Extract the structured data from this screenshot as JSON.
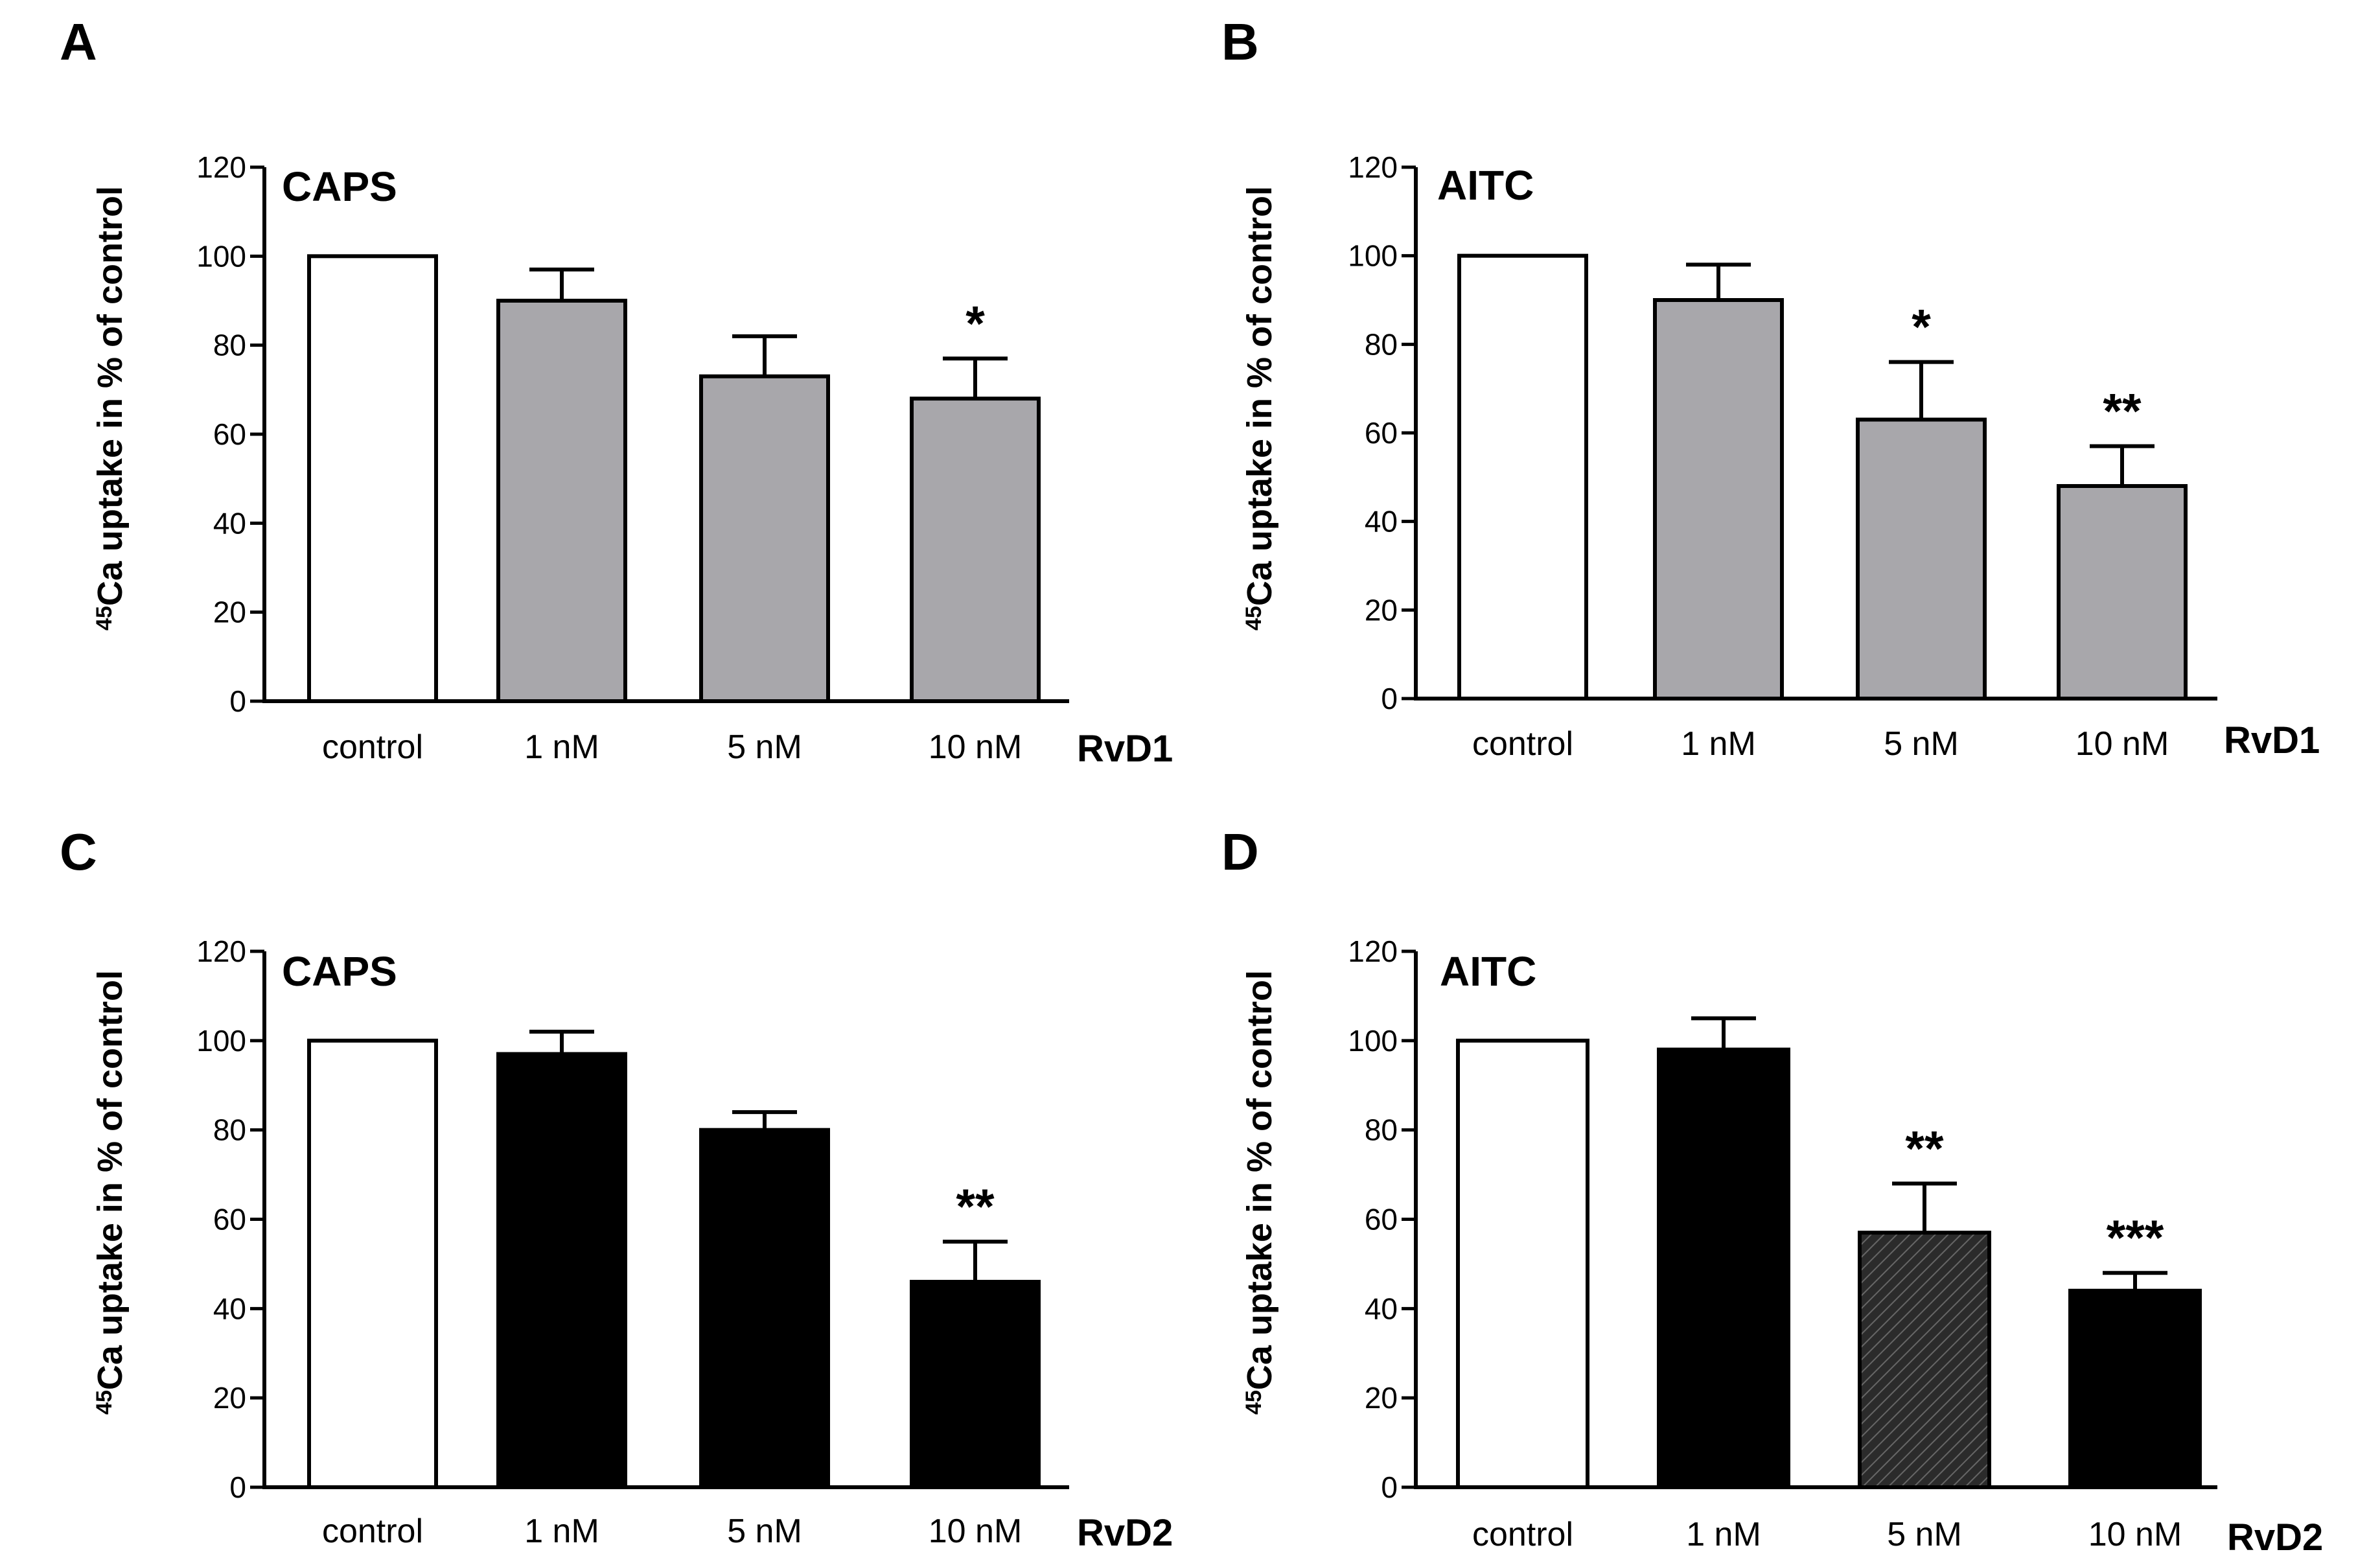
{
  "chart_data": [
    {
      "type": "bar",
      "panel": "A",
      "title": "CAPS",
      "categories": [
        "control",
        "1 nM",
        "5 nM",
        "10 nM"
      ],
      "group_label": "RvD1",
      "values": [
        100,
        90,
        73,
        68
      ],
      "errors": [
        0,
        7,
        9,
        9
      ],
      "fills": [
        "#ffffff",
        "#a8a7ab",
        "#a8a7ab",
        "#a8a7ab"
      ],
      "significance": [
        "",
        "",
        "",
        "*"
      ],
      "ylabel_sup": "45",
      "ylabel": "Ca uptake in % of control",
      "ylim": [
        0,
        120
      ],
      "yticks": [
        "0",
        "20",
        "40",
        "60",
        "80",
        "100",
        "120"
      ]
    },
    {
      "type": "bar",
      "panel": "B",
      "title": "AITC",
      "categories": [
        "control",
        "1 nM",
        "5 nM",
        "10 nM"
      ],
      "group_label": "RvD1",
      "values": [
        100,
        90,
        63,
        48
      ],
      "errors": [
        0,
        8,
        13,
        9
      ],
      "fills": [
        "#ffffff",
        "#a8a7ab",
        "#a8a7ab",
        "#a8a7ab"
      ],
      "significance": [
        "",
        "",
        "*",
        "**"
      ],
      "ylabel_sup": "45",
      "ylabel": "Ca uptake in % of control",
      "ylim": [
        0,
        120
      ],
      "yticks": [
        "0",
        "20",
        "40",
        "60",
        "80",
        "100",
        "120"
      ]
    },
    {
      "type": "bar",
      "panel": "C",
      "title": "CAPS",
      "categories": [
        "control",
        "1 nM",
        "5 nM",
        "10 nM"
      ],
      "group_label": "RvD2",
      "values": [
        100,
        97,
        80,
        46
      ],
      "errors": [
        0,
        5,
        4,
        9
      ],
      "fills": [
        "#ffffff",
        "#000000",
        "#000000",
        "#000000"
      ],
      "significance": [
        "",
        "",
        "",
        "**"
      ],
      "ylabel_sup": "45",
      "ylabel": "Ca uptake in % of control",
      "ylim": [
        0,
        120
      ],
      "yticks": [
        "0",
        "20",
        "40",
        "60",
        "80",
        "100",
        "120"
      ]
    },
    {
      "type": "bar",
      "panel": "D",
      "title": "AITC",
      "categories": [
        "control",
        "1 nM",
        "5 nM",
        "10 nM"
      ],
      "group_label": "RvD2",
      "values": [
        100,
        98,
        57,
        44
      ],
      "errors": [
        0,
        7,
        11,
        4
      ],
      "fills": [
        "#ffffff",
        "#000000",
        "hatch",
        "#000000"
      ],
      "significance": [
        "",
        "",
        "**",
        "***"
      ],
      "ylabel_sup": "45",
      "ylabel": "Ca uptake in % of control",
      "ylim": [
        0,
        120
      ],
      "yticks": [
        "0",
        "20",
        "40",
        "60",
        "80",
        "100",
        "120"
      ]
    }
  ]
}
